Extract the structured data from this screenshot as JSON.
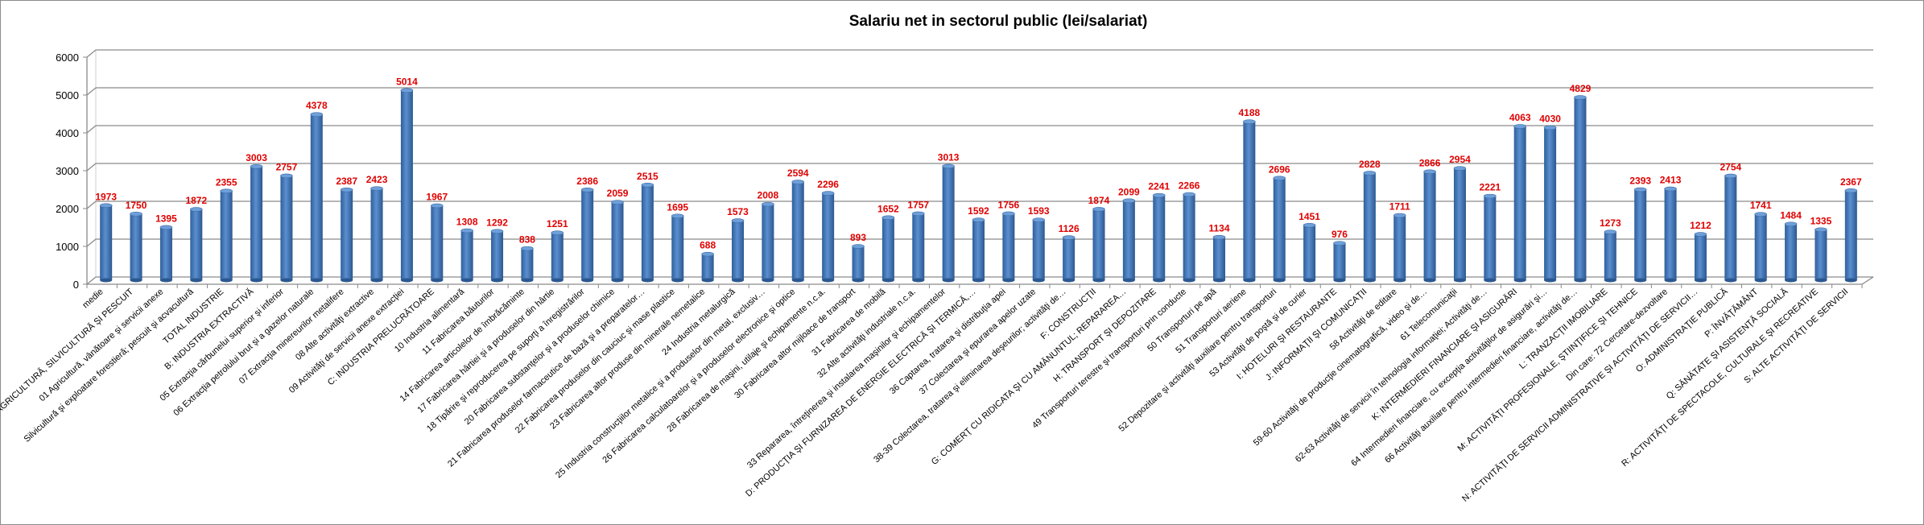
{
  "chart_data": {
    "type": "bar",
    "title": "Salariu net in sectorul public (lei/salariat)",
    "xlabel": "",
    "ylabel": "",
    "ylim": [
      0,
      6000
    ],
    "yticks": [
      0,
      1000,
      2000,
      3000,
      4000,
      5000,
      6000
    ],
    "grid": true,
    "legend": "none",
    "bar_color": "#4f81bd",
    "label_color": "#e00000",
    "categories": [
      "medie",
      "A: AGRICULTURĂ, SILVICULTURĂ ŞI PESCUIT",
      "01 Agricultură, vânătoare şi servicii anexe",
      "Silvicultură şi exploatare forestieră; pescuit  şi acvacultură",
      "TOTAL INDUSTRIE",
      "B: INDUSTRIA EXTRACTIVĂ",
      "05 Extracţia cărbunelui superior şi inferior",
      "06 Extracţia petrolului brut şi a gazelor naturale",
      "07 Extracţia minereurilor metalifere",
      "08 Alte activităţi extractive",
      "09 Activităţi de servicii anexe extracţiei",
      "C: INDUSTRIA PRELUCRĂTOARE",
      "10 Industria alimentară",
      "11 Fabricarea băuturilor",
      "14 Fabricarea articolelor de îmbrăcăminte",
      "17 Fabricarea hârtiei şi a produselor din hârtie",
      "18 Tipărire şi reproducerea pe suporţi a înregistrărilor",
      "20 Fabricarea substanţelor şi a produselor chimice",
      "21 Fabricarea produselor farmaceutice de bază şi a preparatelor…",
      "22 Fabricarea produselor din cauciuc şi mase plastice",
      "23 Fabricarea altor produse din minerale nemetalice",
      "24 Industria metalurgică",
      "25 Industria construcţiilor metalice şi a produselor din metal, exclusiv…",
      "26 Fabricarea calculatoarelor şi a produselor electronice şi optice",
      "28 Fabricarea de maşini, utilaje şi echipamente n.c.a.",
      "30 Fabricarea altor mijloace de transport",
      "31 Fabricarea de mobilă",
      "32 Alte activităţi industriale n.c.a.",
      "33 Repararea, întreţinerea şi instalarea maşinilor şi echipamentelor",
      "D: PRODUCŢIA ŞI FURNIZAREA DE ENERGIE ELECTRICĂ ŞI TERMICĂ,…",
      "36 Captarea, tratarea şi distribuţia apei",
      "37 Colectarea şi epurarea apelor uzate",
      "38-39 Colectarea, tratarea şi eliminarea deşeurilor; activităţi de…",
      "F: CONSTRUCŢII",
      "G: COMERŢ CU RIDICATA ŞI CU AMĂNUNTUL; REPARAREA…",
      "H: TRANSPORT ŞI DEPOZITARE",
      "49 Transporturi terestre şi transporturi prin conducte",
      "50 Transporturi pe apă",
      "51 Transporturi aeriene",
      "52 Depozitare şi activităţi auxiliare pentru transporturi",
      "53 Activităţi de poştă şi de curier",
      "I: HOTELURI ŞI RESTAURANTE",
      "J: INFORMAŢII ŞI COMUNICAŢII",
      "58 Activităţi de editare",
      "59-60 Activităţi de producţie cinematografică, video şi de…",
      "61 Telecomunicaţii",
      "62-63 Activităţi de servicii în tehnologia informaţiei; Activităţi de…",
      "K: INTERMEDIERI FINANCIARE ŞI ASIGURĂRI",
      "64 Intermedieri financiare, cu excepţia activităţilor de asigurări şi…",
      "66 Activităţi auxiliare pentru  intermedieri financiare, activităţi de…",
      "L: TRANZACŢII IMOBILIARE",
      "M: ACTIVITĂŢI PROFESIONALE, ŞTIINŢIFICE ŞI TEHNICE",
      "Din care:  72 Cercetare-dezvoltare",
      "N: ACTIVITĂŢI DE SERVICII ADMINISTRATIVE ŞI ACTIVITĂŢI DE SERVICII…",
      "O: ADMINISTRAŢIE PUBLICĂ",
      "P: ÎNVĂŢĂMÂNT",
      "Q: SĂNĂTATE ŞI ASISTENŢĂ SOCIALĂ",
      "R: ACTIVITĂŢI DE SPECTACOLE, CULTURALE ŞI RECREATIVE",
      "S: ALTE ACTIVITĂŢI DE SERVICII"
    ],
    "values": [
      1973,
      1750,
      1395,
      1872,
      2355,
      3003,
      2757,
      4378,
      2387,
      2423,
      5014,
      1967,
      1308,
      1292,
      838,
      1251,
      2386,
      2059,
      2515,
      1695,
      688,
      1573,
      2008,
      2594,
      2296,
      893,
      1652,
      1757,
      3013,
      1592,
      1756,
      1593,
      1126,
      1874,
      2099,
      2241,
      2266,
      1134,
      4188,
      2696,
      1451,
      976,
      2828,
      1711,
      2866,
      2954,
      2221,
      4063,
      4030,
      4829,
      1273,
      2393,
      2413,
      1212,
      2754,
      1741,
      1484,
      1335,
      2367
    ]
  }
}
